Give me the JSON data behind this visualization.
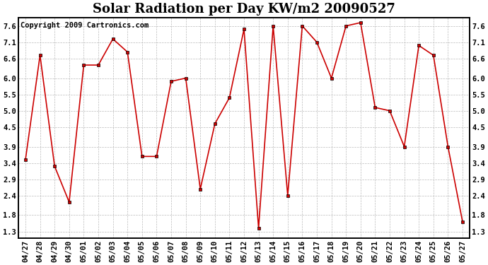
{
  "title": "Solar Radiation per Day KW/m2 20090527",
  "copyright": "Copyright 2009 Cartronics.com",
  "labels": [
    "04/27",
    "04/28",
    "04/29",
    "04/30",
    "05/01",
    "05/02",
    "05/03",
    "05/04",
    "05/05",
    "05/06",
    "05/07",
    "05/08",
    "05/09",
    "05/10",
    "05/11",
    "05/12",
    "05/13",
    "05/14",
    "05/15",
    "05/16",
    "05/17",
    "05/18",
    "05/19",
    "05/20",
    "05/21",
    "05/22",
    "05/23",
    "05/24",
    "05/25",
    "05/26",
    "05/27"
  ],
  "values": [
    3.5,
    6.7,
    3.3,
    2.2,
    6.4,
    6.4,
    7.2,
    6.8,
    3.6,
    3.6,
    5.9,
    6.0,
    2.6,
    4.6,
    5.4,
    7.5,
    1.4,
    7.6,
    2.4,
    7.6,
    7.1,
    6.0,
    7.6,
    7.7,
    5.1,
    5.0,
    3.9,
    7.0,
    6.7,
    3.9,
    1.6
  ],
  "line_color": "#cc0000",
  "marker_color": "#cc0000",
  "bg_color": "#ffffff",
  "plot_bg_color": "#ffffff",
  "grid_color": "#bbbbbb",
  "yticks": [
    1.3,
    1.8,
    2.4,
    2.9,
    3.4,
    3.9,
    4.5,
    5.0,
    5.5,
    6.0,
    6.6,
    7.1,
    7.6
  ],
  "ylim": [
    1.1,
    7.85
  ],
  "title_fontsize": 13,
  "copyright_fontsize": 7.5,
  "tick_fontsize": 7.5,
  "figsize": [
    6.9,
    3.75
  ],
  "dpi": 100
}
